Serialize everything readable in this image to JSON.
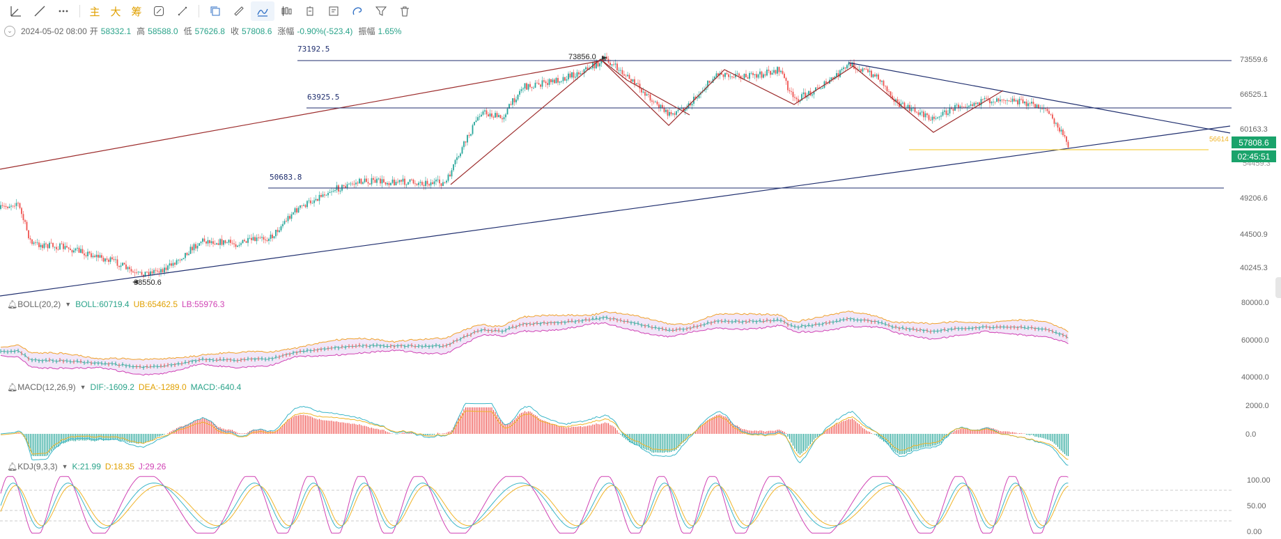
{
  "toolbar": {
    "items": [
      {
        "name": "line-segment-icon"
      },
      {
        "name": "ray-icon"
      },
      {
        "name": "more-icon"
      }
    ],
    "text_items": [
      "主",
      "大",
      "筹"
    ],
    "tools": [
      "annotation-icon",
      "measure-icon",
      "copy-icon",
      "ruler-icon",
      "draw-icon",
      "candlestick-icon",
      "delete-bar-icon",
      "note-icon",
      "magnet-icon",
      "filter-icon",
      "trash-icon"
    ]
  },
  "ohlc": {
    "date": "2024-05-02 08:00",
    "open_label": "开",
    "open": "58332.1",
    "high_label": "高",
    "high": "58588.0",
    "low_label": "低",
    "low": "57626.8",
    "close_label": "收",
    "close": "57808.6",
    "change_label": "涨幅",
    "change": "-0.90%(-523.4)",
    "amp_label": "振幅",
    "amp": "1.65%"
  },
  "main_axis": {
    "ticks": [
      "73559.6",
      "66525.1",
      "60163.3",
      "49206.6",
      "44500.9",
      "40245.3"
    ],
    "hidden_tick": "54459.3",
    "current_price": "57808.6",
    "countdown": "02:45:51",
    "yellow_level": "56614"
  },
  "annotations": {
    "h1": "73192.5",
    "h2": "63925.5",
    "h3": "50683.8",
    "high_mark": "73856.0",
    "low_mark": "38550.6"
  },
  "boll": {
    "name": "BOLL(20,2)",
    "mid": "BOLL:60719.4",
    "ub": "UB:65462.5",
    "lb": "LB:55976.3",
    "ticks": [
      "80000.0",
      "60000.0",
      "40000.0"
    ]
  },
  "macd": {
    "name": "MACD(12,26,9)",
    "dif": "DIF:-1609.2",
    "dea": "DEA:-1289.0",
    "macd": "MACD:-640.4",
    "ticks": [
      "2000.0",
      "0.0"
    ]
  },
  "kdj": {
    "name": "KDJ(9,3,3)",
    "k": "K:21.99",
    "d": "D:18.35",
    "j": "J:29.26",
    "ticks": [
      "100.00",
      "50.00",
      "0.00"
    ]
  },
  "colors": {
    "up": "#26a69a",
    "down": "#ef5350",
    "navy": "#1f2e6e",
    "maroon": "#9c2b2b",
    "yellow": "#f5c518",
    "boll_mid": "#2aa38a",
    "boll_ub": "#f0a22a",
    "boll_lb": "#d042b4",
    "macd_dif": "#3ab6c8",
    "macd_dea": "#f0b429",
    "kdj_k": "#3ab6c8",
    "kdj_d": "#f0b429",
    "kdj_j": "#d042b4",
    "price_tag": "#1aa36b"
  }
}
